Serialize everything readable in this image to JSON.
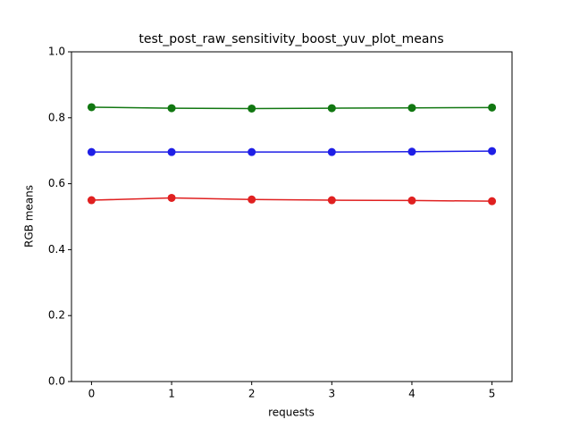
{
  "chart_data": {
    "type": "line",
    "title": "test_post_raw_sensitivity_boost_yuv_plot_means",
    "x_label": "requests",
    "y_label": "RGB means",
    "x": [
      0,
      1,
      2,
      3,
      4,
      5
    ],
    "series": [
      {
        "color": "#e02020",
        "values": [
          0.55,
          0.557,
          0.552,
          0.55,
          0.549,
          0.547
        ]
      },
      {
        "color": "#1f1fe6",
        "values": [
          0.696,
          0.696,
          0.696,
          0.696,
          0.697,
          0.699
        ]
      },
      {
        "color": "#117711",
        "values": [
          0.832,
          0.829,
          0.828,
          0.829,
          0.83,
          0.831
        ]
      }
    ],
    "xlim": [
      -0.25,
      5.25
    ],
    "xticks": [
      0,
      1,
      2,
      3,
      4,
      5
    ],
    "ylim": [
      0,
      1.0
    ],
    "yticks": [
      {
        "value": 0,
        "label": "0.0"
      },
      {
        "value": 0.2,
        "label": "0.2"
      },
      {
        "value": 0.4,
        "label": "0.4"
      },
      {
        "value": 0.6,
        "label": "0.6"
      },
      {
        "value": 0.8,
        "label": "0.8"
      },
      {
        "value": 1.0,
        "label": "1.0"
      }
    ]
  }
}
